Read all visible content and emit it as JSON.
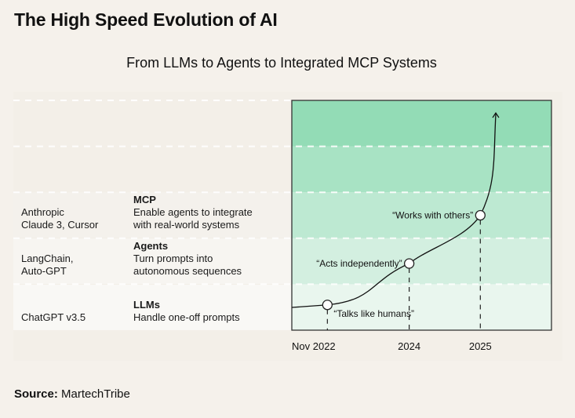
{
  "title": "The High Speed Evolution of AI",
  "subtitle": "From LLMs to Agents to Integrated MCP Systems",
  "source_label": "Source:",
  "source_value": "MartechTribe",
  "stages": [
    {
      "name": "MCP",
      "description_line1": "Enable agents to integrate",
      "description_line2": "with real-world systems",
      "examples_line1": "Anthropic",
      "examples_line2": "Claude 3, Cursor"
    },
    {
      "name": "Agents",
      "description_line1": "Turn prompts into",
      "description_line2": "autonomous sequences",
      "examples_line1": "LangChain,",
      "examples_line2": "Auto-GPT"
    },
    {
      "name": "LLMs",
      "description_line1": "Handle one-off prompts",
      "description_line2": "",
      "examples_line1": "ChatGPT v3.5",
      "examples_line2": ""
    }
  ],
  "colors": {
    "band_top": "#93dcb6",
    "band_2": "#a8e3c4",
    "band_3": "#bde9d2",
    "band_4": "#d3efe0",
    "band_bottom": "#e9f6ee",
    "row_mcp": "#f4f1ec",
    "row_agents": "#f7f5f1",
    "row_llms": "#f9f8f5"
  },
  "chart_data": {
    "type": "line",
    "title": "From LLMs to Agents to Integrated MCP Systems",
    "xlabel": "",
    "ylabel": "",
    "x_ticks": [
      "Nov 2022",
      "2024",
      "2025"
    ],
    "x_tick_positions": [
      2022.85,
      2024.0,
      2025.0
    ],
    "xlim": [
      2022.35,
      2026.0
    ],
    "ylim": [
      0,
      5
    ],
    "bands": [
      "",
      "",
      "MCP",
      "Agents",
      "LLMs"
    ],
    "curve": "exponential growth, arrow pointing up",
    "points": [
      {
        "x": 2022.85,
        "y": 0.55,
        "label": "“Talks like humans”",
        "label_position": "below-right"
      },
      {
        "x": 2024.0,
        "y": 1.45,
        "label": "“Acts independently”",
        "label_position": "left"
      },
      {
        "x": 2025.0,
        "y": 2.5,
        "label": "“Works with others”",
        "label_position": "left"
      }
    ],
    "grid": false,
    "legend": "none"
  }
}
